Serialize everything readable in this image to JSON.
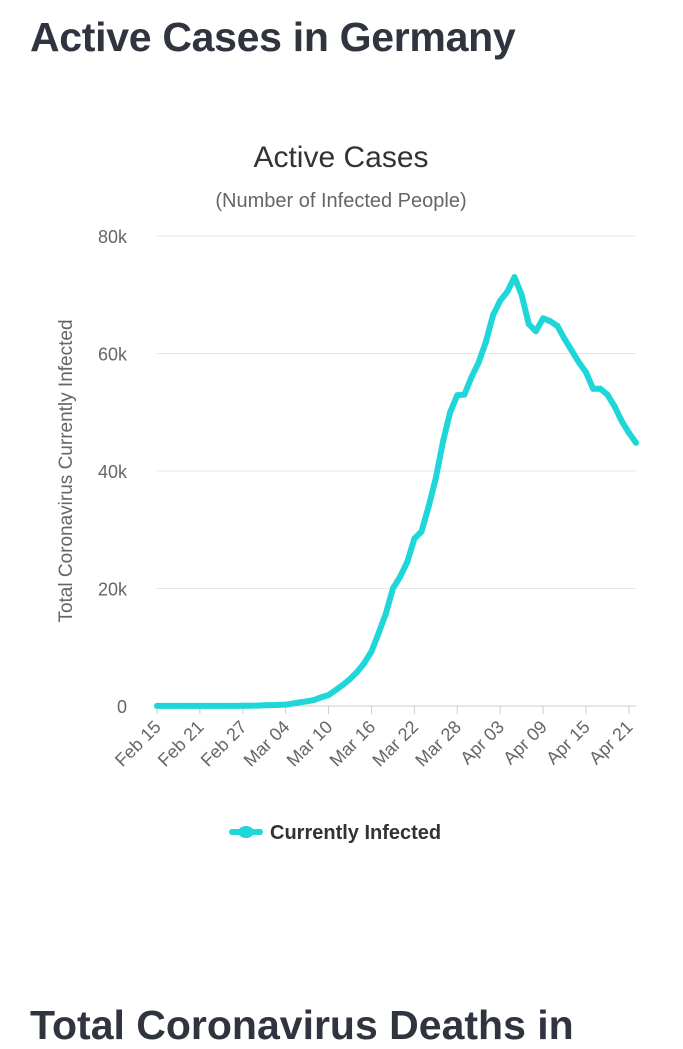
{
  "page": {
    "title": "Active Cases in Germany",
    "next_section_title": "Total Coronavirus Deaths in"
  },
  "chart_data": {
    "type": "line",
    "title": "Active Cases",
    "subtitle": "(Number of Infected People)",
    "xlabel": "",
    "ylabel": "Total Coronavirus Currently Infected",
    "ylim": [
      0,
      80000
    ],
    "y_ticks": [
      0,
      20000,
      40000,
      60000,
      80000
    ],
    "y_tick_labels": [
      "0",
      "20k",
      "40k",
      "60k",
      "80k"
    ],
    "x_tick_labels": [
      "Feb 15",
      "Feb 21",
      "Feb 27",
      "Mar 04",
      "Mar 10",
      "Mar 16",
      "Mar 22",
      "Mar 28",
      "Apr 03",
      "Apr 09",
      "Apr 15",
      "Apr 21"
    ],
    "x_tick_indices": [
      0,
      6,
      12,
      18,
      24,
      30,
      36,
      42,
      48,
      54,
      60,
      66
    ],
    "grid": true,
    "legend_position": "bottom-center",
    "series": [
      {
        "name": "Currently Infected",
        "color": "#1fd6d8",
        "values": [
          16,
          16,
          16,
          16,
          16,
          16,
          16,
          16,
          16,
          16,
          16,
          16,
          26,
          53,
          66,
          117,
          150,
          188,
          240,
          400,
          630,
          795,
          1040,
          1500,
          1860,
          2700,
          3600,
          4600,
          5800,
          7300,
          9300,
          12400,
          15700,
          20000,
          22000,
          24500,
          28500,
          29700,
          34000,
          38800,
          45000,
          50000,
          52900,
          53000,
          56000,
          58500,
          62000,
          66500,
          69000,
          70500,
          73000,
          70000,
          65000,
          63800,
          66000,
          65500,
          64700,
          62500,
          60500,
          58500,
          56800,
          54000,
          54000,
          53000,
          51000,
          48500,
          46500,
          44800
        ]
      }
    ]
  }
}
